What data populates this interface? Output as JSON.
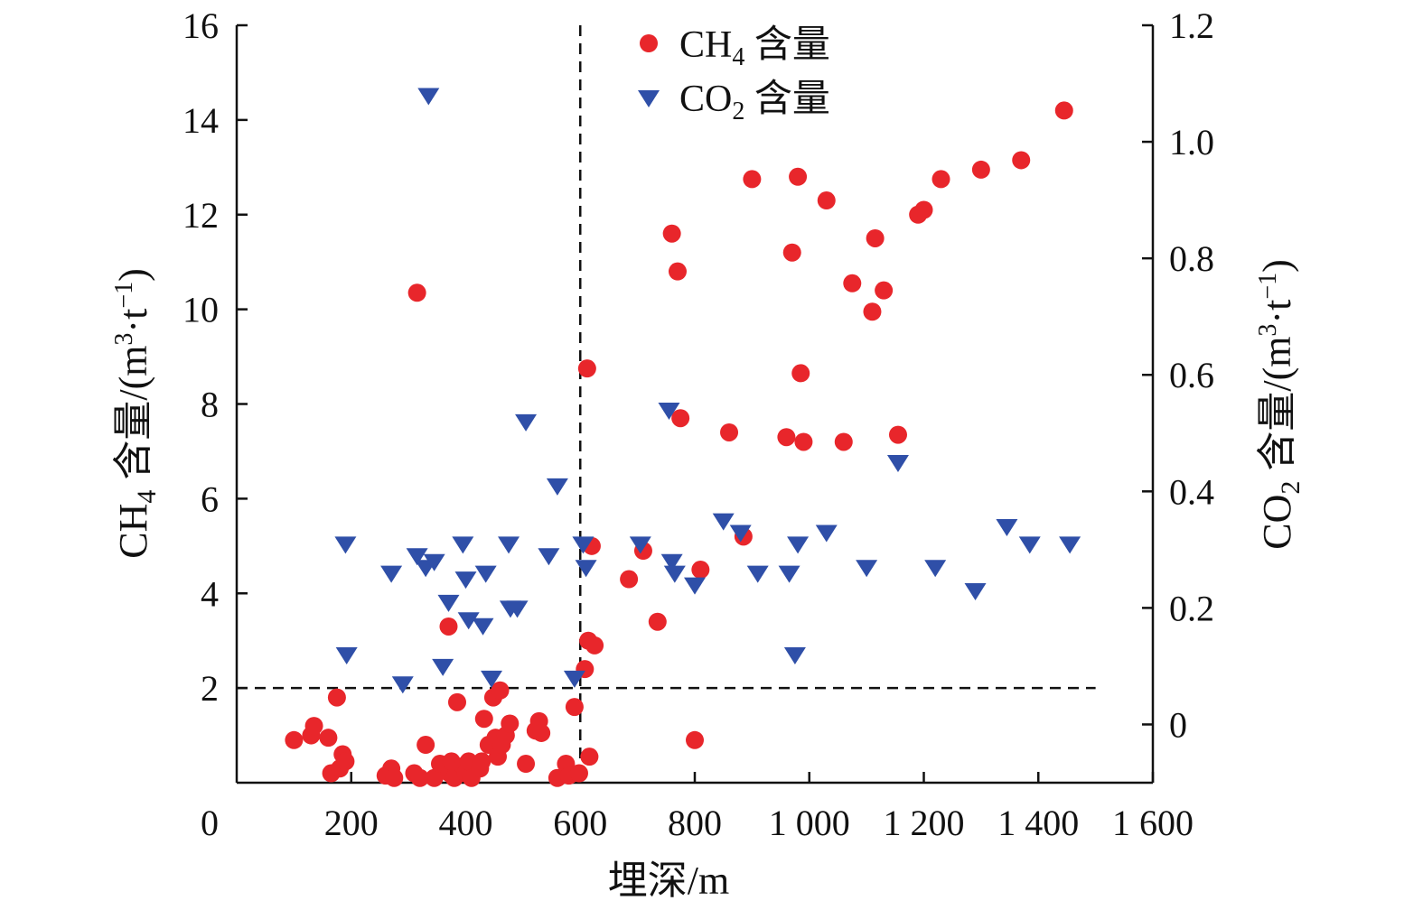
{
  "chart_data": {
    "type": "scatter",
    "xlabel": "埋深/m",
    "ylabel_left": {
      "main": "CH",
      "sub": "4",
      "rest": " 含量/(m",
      "sup1": "3",
      "mid": "·t",
      "sup2": "−1",
      "end": ")"
    },
    "ylabel_right": {
      "main": "CO",
      "sub": "2",
      "rest": " 含量/(m",
      "sup1": "3",
      "mid": "·t",
      "sup2": "−1",
      "end": ")"
    },
    "x_ticks": [
      "0",
      "200",
      "400",
      "600",
      "800",
      "1 000",
      "1 200",
      "1 400",
      "1 600"
    ],
    "x_tick_values": [
      0,
      200,
      400,
      600,
      800,
      1000,
      1200,
      1400,
      1600
    ],
    "y_left_ticks": [
      "2",
      "4",
      "6",
      "8",
      "10",
      "12",
      "14",
      "16"
    ],
    "y_left_tick_values": [
      2,
      4,
      6,
      8,
      10,
      12,
      14,
      16
    ],
    "y_right_ticks": [
      "0",
      "0.2",
      "0.4",
      "0.6",
      "0.8",
      "1.0",
      "1.2"
    ],
    "y_right_tick_values": [
      0,
      0.2,
      0.4,
      0.6,
      0.8,
      1.0,
      1.2
    ],
    "xlim": [
      0,
      1600
    ],
    "ylim_left": [
      0,
      16
    ],
    "ylim_right": [
      -0.1,
      1.2
    ],
    "legend_position": "top-center",
    "reference_lines": {
      "x": 600,
      "y_left": 2
    },
    "series": [
      {
        "name_main": "CH",
        "name_sub": "4",
        "name_rest": " 含量",
        "axis": "left",
        "marker": "circle",
        "color": "#e8262b",
        "points": [
          [
            100,
            0.9
          ],
          [
            130,
            1.0
          ],
          [
            135,
            1.2
          ],
          [
            160,
            0.95
          ],
          [
            165,
            0.2
          ],
          [
            175,
            1.8
          ],
          [
            180,
            0.3
          ],
          [
            185,
            0.6
          ],
          [
            190,
            0.45
          ],
          [
            260,
            0.15
          ],
          [
            270,
            0.3
          ],
          [
            275,
            0.1
          ],
          [
            310,
            0.2
          ],
          [
            315,
            10.35
          ],
          [
            320,
            0.1
          ],
          [
            330,
            0.8
          ],
          [
            345,
            0.1
          ],
          [
            355,
            0.4
          ],
          [
            370,
            3.3
          ],
          [
            372,
            0.2
          ],
          [
            375,
            0.45
          ],
          [
            380,
            0.1
          ],
          [
            385,
            1.7
          ],
          [
            395,
            0.35
          ],
          [
            400,
            0.2
          ],
          [
            405,
            0.45
          ],
          [
            410,
            0.1
          ],
          [
            425,
            0.3
          ],
          [
            428,
            0.45
          ],
          [
            432,
            1.35
          ],
          [
            440,
            0.8
          ],
          [
            448,
            1.8
          ],
          [
            452,
            0.95
          ],
          [
            456,
            0.55
          ],
          [
            460,
            1.95
          ],
          [
            463,
            0.8
          ],
          [
            470,
            1.0
          ],
          [
            477,
            1.25
          ],
          [
            505,
            0.4
          ],
          [
            522,
            1.1
          ],
          [
            528,
            1.3
          ],
          [
            532,
            1.05
          ],
          [
            560,
            0.1
          ],
          [
            575,
            0.4
          ],
          [
            580,
            0.15
          ],
          [
            590,
            1.6
          ],
          [
            598,
            0.2
          ],
          [
            608,
            2.4
          ],
          [
            612,
            8.75
          ],
          [
            614,
            3.0
          ],
          [
            616,
            0.55
          ],
          [
            620,
            5.0
          ],
          [
            625,
            2.9
          ],
          [
            685,
            4.3
          ],
          [
            710,
            4.9
          ],
          [
            735,
            3.4
          ],
          [
            760,
            11.6
          ],
          [
            770,
            10.8
          ],
          [
            775,
            7.7
          ],
          [
            800,
            0.9
          ],
          [
            810,
            4.5
          ],
          [
            860,
            7.4
          ],
          [
            885,
            5.2
          ],
          [
            900,
            12.75
          ],
          [
            960,
            7.3
          ],
          [
            970,
            11.2
          ],
          [
            980,
            12.8
          ],
          [
            985,
            8.65
          ],
          [
            990,
            7.2
          ],
          [
            1030,
            12.3
          ],
          [
            1060,
            7.2
          ],
          [
            1075,
            10.55
          ],
          [
            1110,
            9.95
          ],
          [
            1115,
            11.5
          ],
          [
            1130,
            10.4
          ],
          [
            1155,
            7.35
          ],
          [
            1190,
            12.0
          ],
          [
            1200,
            12.1
          ],
          [
            1230,
            12.75
          ],
          [
            1300,
            12.95
          ],
          [
            1370,
            13.15
          ],
          [
            1445,
            14.2
          ]
        ]
      },
      {
        "name_main": "CO",
        "name_sub": "2",
        "name_rest": " 含量",
        "axis": "right",
        "marker": "triangle-down",
        "color": "#2f4fa8",
        "points": [
          [
            190,
            0.31
          ],
          [
            192,
            0.12
          ],
          [
            270,
            0.26
          ],
          [
            290,
            0.07
          ],
          [
            315,
            0.29
          ],
          [
            330,
            0.27
          ],
          [
            335,
            1.08
          ],
          [
            345,
            0.28
          ],
          [
            360,
            0.1
          ],
          [
            370,
            0.21
          ],
          [
            395,
            0.31
          ],
          [
            400,
            0.25
          ],
          [
            405,
            0.18
          ],
          [
            430,
            0.17
          ],
          [
            435,
            0.26
          ],
          [
            445,
            0.08
          ],
          [
            475,
            0.31
          ],
          [
            478,
            0.2
          ],
          [
            490,
            0.2
          ],
          [
            505,
            0.52
          ],
          [
            545,
            0.29
          ],
          [
            560,
            0.41
          ],
          [
            590,
            0.08
          ],
          [
            605,
            0.31
          ],
          [
            610,
            0.27
          ],
          [
            705,
            0.31
          ],
          [
            755,
            0.54
          ],
          [
            760,
            0.28
          ],
          [
            765,
            0.26
          ],
          [
            800,
            0.24
          ],
          [
            850,
            0.35
          ],
          [
            880,
            0.33
          ],
          [
            910,
            0.26
          ],
          [
            965,
            0.26
          ],
          [
            975,
            0.12
          ],
          [
            980,
            0.31
          ],
          [
            1030,
            0.33
          ],
          [
            1100,
            0.27
          ],
          [
            1155,
            0.45
          ],
          [
            1220,
            0.27
          ],
          [
            1290,
            0.23
          ],
          [
            1345,
            0.34
          ],
          [
            1385,
            0.31
          ],
          [
            1455,
            0.31
          ]
        ]
      }
    ]
  }
}
